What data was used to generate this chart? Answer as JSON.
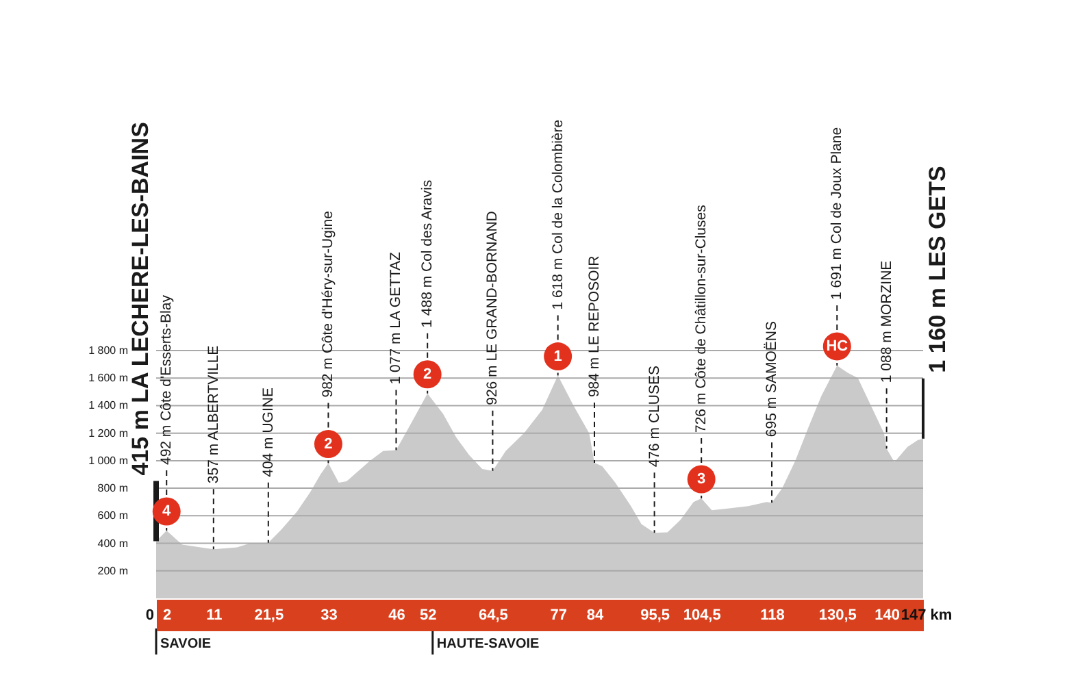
{
  "chart_data": {
    "type": "area",
    "color": "#cacaca",
    "x": [
      0,
      2,
      5,
      8.5,
      11,
      15.5,
      18,
      21.5,
      24,
      27,
      29.5,
      31.5,
      33,
      35,
      36.5,
      38,
      41,
      43.5,
      46,
      49,
      52,
      55,
      57.5,
      60,
      62.5,
      64.5,
      67,
      70.5,
      74,
      77,
      80,
      83,
      84,
      85.5,
      88,
      91,
      93,
      95.5,
      98,
      100.5,
      103,
      104.5,
      106.5,
      109,
      113.5,
      117,
      118,
      120,
      122.5,
      125,
      127.5,
      130.5,
      132.5,
      134.5,
      137,
      139.5,
      140,
      141.5,
      144,
      146,
      147
    ],
    "values": [
      415,
      492,
      390,
      370,
      357,
      370,
      400,
      404,
      500,
      630,
      770,
      900,
      982,
      840,
      850,
      900,
      1000,
      1070,
      1077,
      1280,
      1488,
      1340,
      1170,
      1040,
      940,
      926,
      1070,
      1200,
      1370,
      1618,
      1400,
      1200,
      984,
      960,
      840,
      670,
      540,
      476,
      480,
      570,
      700,
      726,
      640,
      650,
      670,
      700,
      695,
      800,
      1000,
      1240,
      1470,
      1691,
      1640,
      1600,
      1400,
      1200,
      1088,
      990,
      1100,
      1150,
      1160
    ],
    "xlim": [
      0,
      147
    ],
    "xticks": [
      0,
      2,
      11,
      {
        "value": 21.5,
        "label": "21,5"
      },
      33,
      46,
      52,
      {
        "value": 64.5,
        "label": "64,5"
      },
      77,
      84,
      {
        "value": 95.5,
        "label": "95,5"
      },
      {
        "value": 104.5,
        "label": "104,5"
      },
      118,
      {
        "value": 130.5,
        "label": "130,5"
      },
      140,
      {
        "value": 147,
        "label": "147 km"
      }
    ],
    "ylim": [
      0,
      1800
    ],
    "yticks": [
      {
        "value": 200,
        "label": "200 m"
      },
      {
        "value": 400,
        "label": "400 m"
      },
      {
        "value": 600,
        "label": "600 m"
      },
      {
        "value": 800,
        "label": "800 m"
      },
      {
        "value": 1000,
        "label": "1 000 m"
      },
      {
        "value": 1200,
        "label": "1 200 m"
      },
      {
        "value": 1400,
        "label": "1 400 m"
      },
      {
        "value": 1600,
        "label": "1 600 m"
      },
      {
        "value": 1800,
        "label": "1 800 m"
      }
    ],
    "grid": "y",
    "annotations": [
      {
        "text": "415 m LA LECHERE-LES-BAINS",
        "x": 0,
        "y": 415
      },
      {
        "text": "492 m Côte d'Esserts-Blay",
        "x": 2,
        "y": 492
      },
      {
        "text": "357 m ALBERTVILLE",
        "x": 11,
        "y": 357
      },
      {
        "text": "404 m UGINE",
        "x": 21.5,
        "y": 404
      },
      {
        "text": "982 m Côte d'Héry-sur-Ugine",
        "x": 33,
        "y": 982
      },
      {
        "text": "1 077 m LA GETTAZ",
        "x": 46,
        "y": 1077
      },
      {
        "text": "1 488 m Col des Aravis",
        "x": 52,
        "y": 1488
      },
      {
        "text": "926 m LE GRAND-BORNAND",
        "x": 64.5,
        "y": 926
      },
      {
        "text": "1 618 m Col de la Colombière",
        "x": 77,
        "y": 1618
      },
      {
        "text": "984 m LE REPOSOIR",
        "x": 84,
        "y": 984
      },
      {
        "text": "476 m CLUSES",
        "x": 95.5,
        "y": 476
      },
      {
        "text": "726 m Côte de Châtillon-sur-Cluses",
        "x": 104.5,
        "y": 726
      },
      {
        "text": "695 m SAMOËNS",
        "x": 118,
        "y": 695
      },
      {
        "text": "1 691 m Col de Joux Plane",
        "x": 130.5,
        "y": 1691
      },
      {
        "text": "1 088 m MORZINE",
        "x": 140,
        "y": 1088
      },
      {
        "text": "1 160 m LES GETS",
        "x": 147,
        "y": 1160
      },
      {
        "text": "4",
        "x": 2,
        "y": 492
      },
      {
        "text": "2",
        "x": 33,
        "y": 982
      },
      {
        "text": "2",
        "x": 52,
        "y": 1488
      },
      {
        "text": "1",
        "x": 77,
        "y": 1618
      },
      {
        "text": "3",
        "x": 104.5,
        "y": 726
      },
      {
        "text": "HC",
        "x": 130.5,
        "y": 1691
      }
    ],
    "ref_lines": [
      {
        "axis": "x",
        "value": 0,
        "label": "SAVOIE",
        "color": "#1a1a1a"
      },
      {
        "axis": "x",
        "value": 53,
        "label": "HAUTE-SAVOIE",
        "color": "#1a1a1a"
      }
    ]
  }
}
